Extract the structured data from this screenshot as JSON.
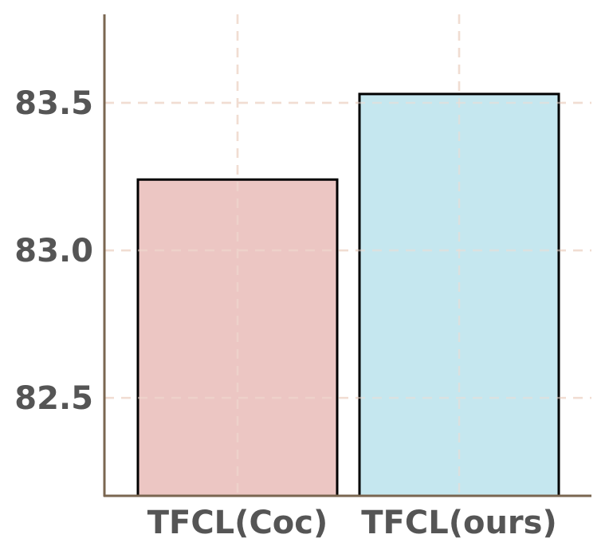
{
  "chart_data": {
    "type": "bar",
    "categories": [
      "TFCL(Coc)",
      "TFCL(ours)"
    ],
    "values": [
      83.24,
      83.53
    ],
    "colors": [
      "#ecc6c3",
      "#c5e7ef"
    ],
    "ylim": [
      82.168,
      83.8
    ],
    "yticks": [
      82.5,
      {
        "value": 83,
        "label": "83.0"
      },
      83.5
    ],
    "grid": true
  }
}
